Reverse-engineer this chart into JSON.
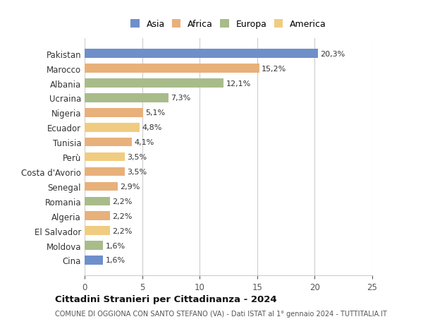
{
  "countries": [
    "Pakistan",
    "Marocco",
    "Albania",
    "Ucraina",
    "Nigeria",
    "Ecuador",
    "Tunisia",
    "Perù",
    "Costa d'Avorio",
    "Senegal",
    "Romania",
    "Algeria",
    "El Salvador",
    "Moldova",
    "Cina"
  ],
  "values": [
    20.3,
    15.2,
    12.1,
    7.3,
    5.1,
    4.8,
    4.1,
    3.5,
    3.5,
    2.9,
    2.2,
    2.2,
    2.2,
    1.6,
    1.6
  ],
  "labels": [
    "20,3%",
    "15,2%",
    "12,1%",
    "7,3%",
    "5,1%",
    "4,8%",
    "4,1%",
    "3,5%",
    "3,5%",
    "2,9%",
    "2,2%",
    "2,2%",
    "2,2%",
    "1,6%",
    "1,6%"
  ],
  "colors": [
    "#6e8fca",
    "#e8b07a",
    "#a8bc8a",
    "#a8bc8a",
    "#e8b07a",
    "#f0cc80",
    "#e8b07a",
    "#f0cc80",
    "#e8b07a",
    "#e8b07a",
    "#a8bc8a",
    "#e8b07a",
    "#f0cc80",
    "#a8bc8a",
    "#6e8fca"
  ],
  "legend_labels": [
    "Asia",
    "Africa",
    "Europa",
    "America"
  ],
  "legend_colors": [
    "#6e8fca",
    "#e8b07a",
    "#a8bc8a",
    "#f0cc80"
  ],
  "title": "Cittadini Stranieri per Cittadinanza - 2024",
  "subtitle": "COMUNE DI OGGIONA CON SANTO STEFANO (VA) - Dati ISTAT al 1° gennaio 2024 - TUTTITALIA.IT",
  "xlim": [
    0,
    25
  ],
  "xticks": [
    0,
    5,
    10,
    15,
    20,
    25
  ],
  "background_color": "#ffffff"
}
